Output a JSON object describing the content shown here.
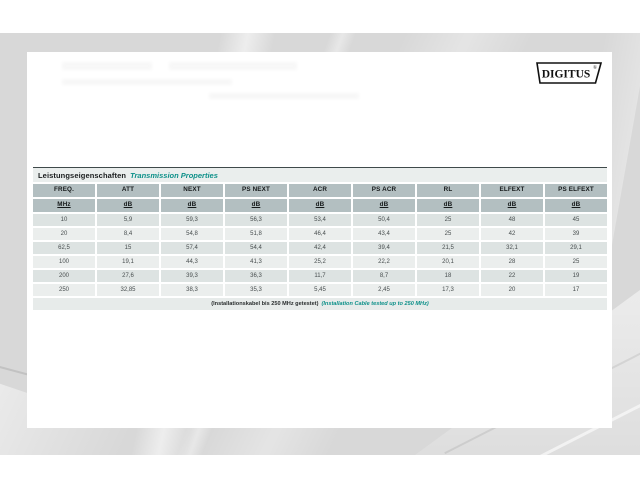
{
  "brand": {
    "logo_text": "DIGITUS",
    "registered_mark": "®"
  },
  "table": {
    "title_de": "Leistungseigenschaften",
    "title_en": "Transmission Properties",
    "columns": [
      "FREQ.",
      "ATT",
      "NEXT",
      "PS NEXT",
      "ACR",
      "PS ACR",
      "RL",
      "ELFEXT",
      "PS ELFEXT"
    ],
    "units": [
      "MHz",
      "dB",
      "dB",
      "dB",
      "dB",
      "dB",
      "dB",
      "dB",
      "dB"
    ],
    "rows": [
      [
        "10",
        "5,9",
        "59,3",
        "56,3",
        "53,4",
        "50,4",
        "25",
        "48",
        "45"
      ],
      [
        "20",
        "8,4",
        "54,8",
        "51,8",
        "46,4",
        "43,4",
        "25",
        "42",
        "39"
      ],
      [
        "62,5",
        "15",
        "57,4",
        "54,4",
        "42,4",
        "39,4",
        "21,5",
        "32,1",
        "29,1"
      ],
      [
        "100",
        "19,1",
        "44,3",
        "41,3",
        "25,2",
        "22,2",
        "20,1",
        "28",
        "25"
      ],
      [
        "200",
        "27,6",
        "39,3",
        "36,3",
        "11,7",
        "8,7",
        "18",
        "22",
        "19"
      ],
      [
        "250",
        "32,85",
        "38,3",
        "35,3",
        "5,45",
        "2,45",
        "17,3",
        "20",
        "17"
      ]
    ],
    "footnote_de": "(Installationskabel bis 250 MHz getestet)",
    "footnote_en": "(Installation Cable tested up to 250 MHz)"
  },
  "colors": {
    "accent_teal": "#0d9089",
    "header_bg": "#b3bfc1",
    "row_dark": "#dde3e2",
    "row_light": "#ebeeed",
    "title_bg": "#eaeeed",
    "footer_bg": "#e7ebea",
    "backdrop_gray": "#d8d8d8"
  }
}
